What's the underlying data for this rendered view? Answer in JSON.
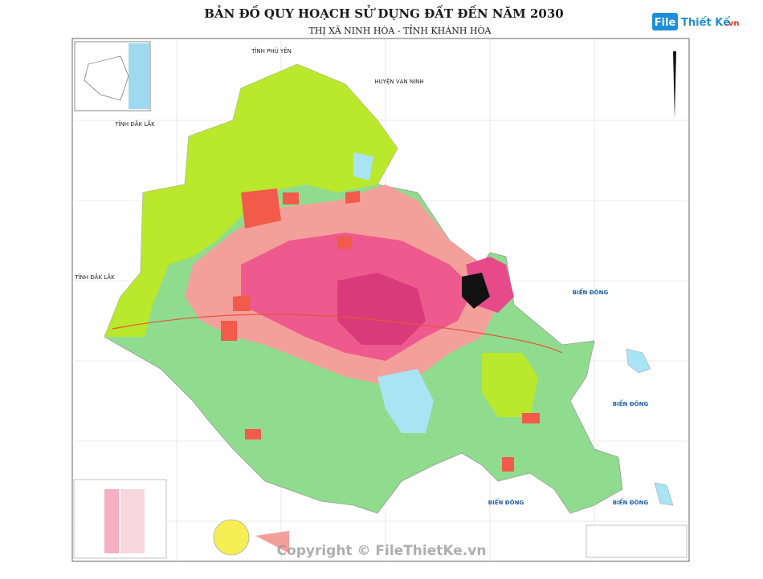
{
  "header": {
    "title": "BẢN ĐỒ QUY HOẠCH SỬ DỤNG ĐẤT ĐẾN NĂM 2030",
    "subtitle": "THỊ XÃ NINH HÒA - TỈNH KHÁNH HÒA"
  },
  "logo": {
    "brand": "File",
    "name": "Thiết Kế",
    "suffix": ".vn"
  },
  "map_labels": {
    "north": "TỈNH PHÚ YÊN",
    "northeast": "HUYỆN VẠN NINH",
    "west_upper": "TỈNH ĐẮK LẮK",
    "west_lower": "TỈNH ĐẮK LẮK",
    "sea": [
      "BIỂN ĐÔNG",
      "BIỂN ĐÔNG",
      "BIỂN ĐÔNG",
      "BIỂN ĐÔNG"
    ]
  },
  "watermark": "Copyright © FileThietKe.vn"
}
